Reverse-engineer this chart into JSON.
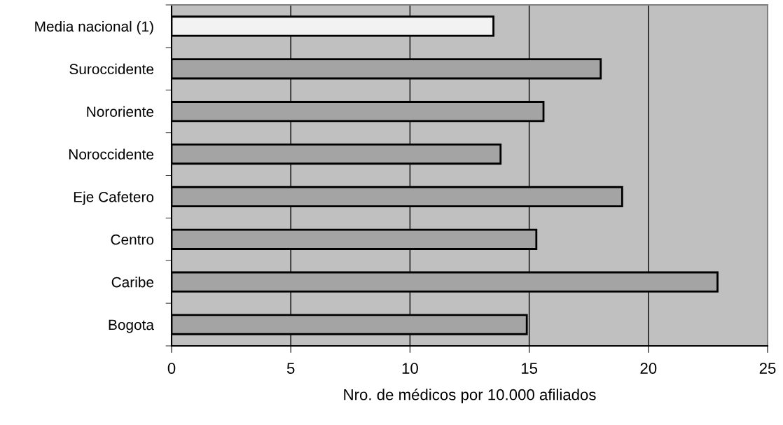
{
  "chart_data": {
    "type": "bar",
    "orientation": "horizontal",
    "xlabel": "Nro. de médicos por 10.000 afiliados",
    "categories": [
      "Media nacional (1)",
      "Suroccidente",
      "Nororiente",
      "Noroccidente",
      "Eje Cafetero",
      "Centro",
      "Caribe",
      "Bogota"
    ],
    "values": [
      13.5,
      18.0,
      15.6,
      13.8,
      18.9,
      15.3,
      22.9,
      14.9
    ],
    "colors": [
      "#f2f2f2",
      "#a4a4a4",
      "#a4a4a4",
      "#a4a4a4",
      "#a4a4a4",
      "#a4a4a4",
      "#a4a4a4",
      "#a4a4a4"
    ],
    "xlim": [
      0,
      25
    ],
    "xticks": [
      0,
      5,
      10,
      15,
      20,
      25
    ],
    "grid": "x",
    "legend": false
  }
}
